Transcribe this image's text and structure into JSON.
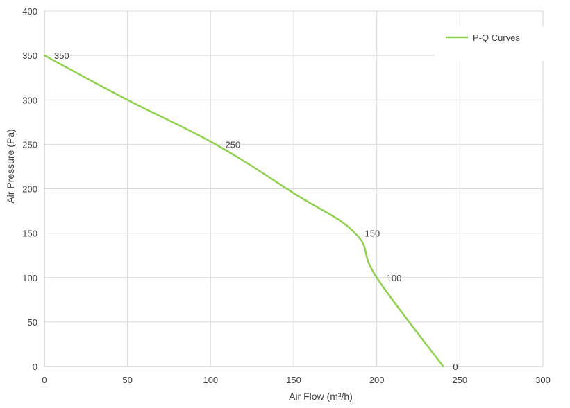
{
  "chart_data": {
    "type": "line",
    "title": "",
    "xlabel": "Air Flow  (m³/h)",
    "ylabel": "Air Pressure  (Pa)",
    "xlim": [
      0,
      300
    ],
    "ylim": [
      0,
      400
    ],
    "x_ticks": [
      0,
      50,
      100,
      150,
      200,
      250,
      300
    ],
    "y_ticks": [
      0,
      50,
      100,
      150,
      200,
      250,
      300,
      350,
      400
    ],
    "grid": true,
    "legend_position": "top-right",
    "series": [
      {
        "name": "P-Q Curves",
        "color": "#8fd14f",
        "x": [
          0,
          50,
          103,
          150,
          187,
          200,
          240
        ],
        "y": [
          350,
          300,
          250,
          195,
          150,
          100,
          0
        ]
      }
    ],
    "data_labels": [
      {
        "x": 0,
        "y": 350,
        "text": "350"
      },
      {
        "x": 103,
        "y": 250,
        "text": "250"
      },
      {
        "x": 187,
        "y": 150,
        "text": "150"
      },
      {
        "x": 200,
        "y": 100,
        "text": "100"
      },
      {
        "x": 240,
        "y": 0,
        "text": "0"
      }
    ]
  }
}
